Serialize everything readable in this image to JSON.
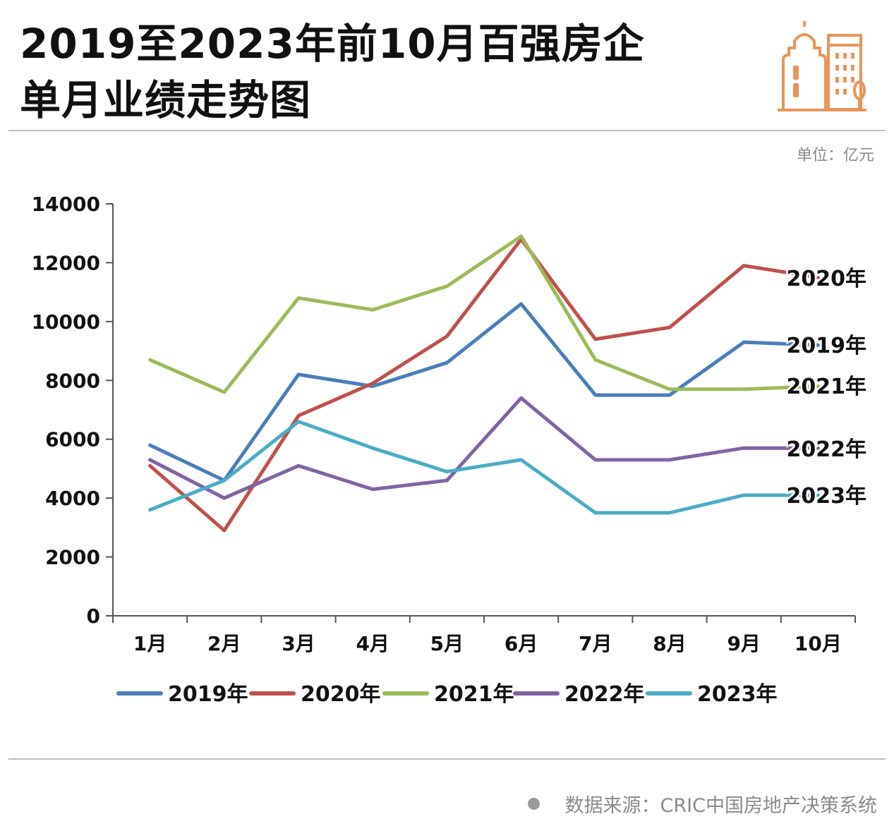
{
  "header": {
    "title_line1": "2019至2023年前10月百强房企",
    "title_line2": "单月业绩走势图",
    "unit": "单位：亿元"
  },
  "footer": {
    "source": "数据来源：CRIC中国房地产决策系统"
  },
  "colors": {
    "2019": "#4a7ebb",
    "2020": "#c0504d",
    "2021": "#9bbb59",
    "2022": "#8064a2",
    "2023": "#4bacc6",
    "logo": "#e8955a"
  },
  "chart_data": {
    "type": "line",
    "title": "2019至2023年前10月百强房企单月业绩走势图",
    "xlabel": "",
    "ylabel": "单位：亿元",
    "ylim": [
      0,
      14000
    ],
    "yticks": [
      0,
      2000,
      4000,
      6000,
      8000,
      10000,
      12000,
      14000
    ],
    "categories": [
      "1月",
      "2月",
      "3月",
      "4月",
      "5月",
      "6月",
      "7月",
      "8月",
      "9月",
      "10月"
    ],
    "legend_position": "bottom",
    "series": [
      {
        "name": "2019年",
        "color": "#4a7ebb",
        "values": [
          5800,
          4600,
          8200,
          7800,
          8600,
          10600,
          7500,
          7500,
          9300,
          9200
        ]
      },
      {
        "name": "2020年",
        "color": "#c0504d",
        "values": [
          5100,
          2900,
          6800,
          7900,
          9500,
          12800,
          9400,
          9800,
          11900,
          11500
        ]
      },
      {
        "name": "2021年",
        "color": "#9bbb59",
        "values": [
          8700,
          7600,
          10800,
          10400,
          11200,
          12900,
          8700,
          7700,
          7700,
          7800
        ]
      },
      {
        "name": "2022年",
        "color": "#8064a2",
        "values": [
          5300,
          4000,
          5100,
          4300,
          4600,
          7400,
          5300,
          5300,
          5700,
          5700
        ]
      },
      {
        "name": "2023年",
        "color": "#4bacc6",
        "values": [
          3600,
          4600,
          6600,
          5700,
          4900,
          5300,
          3500,
          3500,
          4100,
          4100
        ]
      }
    ],
    "end_labels": [
      "2020年",
      "2019年",
      "2021年",
      "2022年",
      "2023年"
    ]
  }
}
